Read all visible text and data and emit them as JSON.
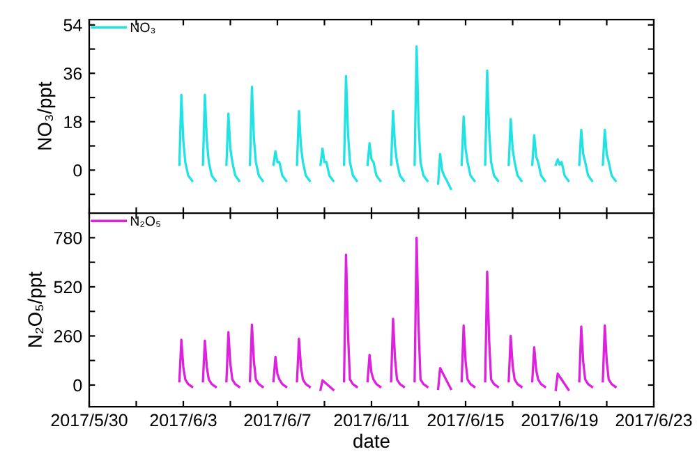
{
  "chart_data": [
    {
      "type": "line",
      "ylabel": "NO₃/ppt",
      "legend": "top left",
      "marker": "none",
      "line_style": "solid",
      "grid": false,
      "tick_labels": "y",
      "xlim": [
        "2017-05-30",
        "2017-06-23"
      ],
      "xticks": [
        {
          "value": "2017-05-30",
          "label": null
        },
        {
          "value": "2017-06-01",
          "label": null
        },
        {
          "value": "2017-06-03",
          "label": null
        },
        {
          "value": "2017-06-05",
          "label": null
        },
        {
          "value": "2017-06-07",
          "label": null
        },
        {
          "value": "2017-06-09",
          "label": null
        },
        {
          "value": "2017-06-11",
          "label": null
        },
        {
          "value": "2017-06-13",
          "label": null
        },
        {
          "value": "2017-06-15",
          "label": null
        },
        {
          "value": "2017-06-17",
          "label": null
        },
        {
          "value": "2017-06-19",
          "label": null
        },
        {
          "value": "2017-06-21",
          "label": null
        },
        {
          "value": "2017-06-23",
          "label": null
        }
      ],
      "ylim": [
        -16,
        56
      ],
      "yticks": [
        {
          "value": -9,
          "label": null
        },
        0,
        {
          "value": 9,
          "label": null
        },
        18,
        {
          "value": 27,
          "label": null
        },
        36,
        {
          "value": 45,
          "label": null
        },
        54
      ],
      "x": [
        "2017-06-02T20:00",
        "2017-06-02T22:00",
        "2017-06-03T00:00",
        "2017-06-03T02:00",
        "2017-06-03T05:00",
        "2017-06-03T09:00",
        "2017-06-03T14:00",
        "2017-06-03T20:00",
        "2017-06-03T22:00",
        "2017-06-04T00:00",
        "2017-06-04T02:00",
        "2017-06-04T05:00",
        "2017-06-04T09:00",
        "2017-06-04T14:00",
        "2017-06-04T20:00",
        "2017-06-04T22:00",
        "2017-06-05T00:00",
        "2017-06-05T02:00",
        "2017-06-05T05:00",
        "2017-06-05T09:00",
        "2017-06-05T14:00",
        "2017-06-05T20:00",
        "2017-06-05T22:00",
        "2017-06-06T00:00",
        "2017-06-06T02:00",
        "2017-06-06T05:00",
        "2017-06-06T09:00",
        "2017-06-06T14:00",
        "2017-06-06T20:00",
        "2017-06-06T22:00",
        "2017-06-07T00:00",
        "2017-06-07T02:00",
        "2017-06-07T05:00",
        "2017-06-07T09:00",
        "2017-06-07T14:00",
        "2017-06-07T20:00",
        "2017-06-07T22:00",
        "2017-06-08T00:00",
        "2017-06-08T02:00",
        "2017-06-08T05:00",
        "2017-06-08T09:00",
        "2017-06-08T14:00",
        "2017-06-08T20:00",
        "2017-06-08T22:00",
        "2017-06-09T00:00",
        "2017-06-09T02:00",
        "2017-06-09T05:00",
        "2017-06-09T09:00",
        "2017-06-09T14:00",
        "2017-06-09T20:00",
        "2017-06-09T22:00",
        "2017-06-10T00:00",
        "2017-06-10T02:00",
        "2017-06-10T05:00",
        "2017-06-10T09:00",
        "2017-06-10T14:00",
        "2017-06-10T20:00",
        "2017-06-10T22:00",
        "2017-06-11T00:00",
        "2017-06-11T02:00",
        "2017-06-11T05:00",
        "2017-06-11T09:00",
        "2017-06-11T14:00",
        "2017-06-11T20:00",
        "2017-06-11T22:00",
        "2017-06-12T00:00",
        "2017-06-12T02:00",
        "2017-06-12T05:00",
        "2017-06-12T09:00",
        "2017-06-12T14:00",
        "2017-06-12T20:00",
        "2017-06-12T22:00",
        "2017-06-13T00:00",
        "2017-06-13T02:00",
        "2017-06-13T05:00",
        "2017-06-13T09:00",
        "2017-06-13T14:00",
        "2017-06-13T20:00",
        "2017-06-13T22:00",
        "2017-06-14T00:00",
        "2017-06-14T02:00",
        "2017-06-14T05:00",
        "2017-06-14T09:00",
        "2017-06-14T14:00",
        "2017-06-14T20:00",
        "2017-06-14T22:00",
        "2017-06-15T00:00",
        "2017-06-15T02:00",
        "2017-06-15T05:00",
        "2017-06-15T09:00",
        "2017-06-15T14:00",
        "2017-06-15T20:00",
        "2017-06-15T22:00",
        "2017-06-16T00:00",
        "2017-06-16T02:00",
        "2017-06-16T05:00",
        "2017-06-16T09:00",
        "2017-06-16T14:00",
        "2017-06-16T20:00",
        "2017-06-16T22:00",
        "2017-06-17T00:00",
        "2017-06-17T02:00",
        "2017-06-17T05:00",
        "2017-06-17T09:00",
        "2017-06-17T14:00",
        "2017-06-17T20:00",
        "2017-06-17T22:00",
        "2017-06-18T00:00",
        "2017-06-18T02:00",
        "2017-06-18T05:00",
        "2017-06-18T09:00",
        "2017-06-18T14:00",
        "2017-06-18T20:00",
        "2017-06-18T22:00",
        "2017-06-19T00:00",
        "2017-06-19T02:00",
        "2017-06-19T05:00",
        "2017-06-19T09:00",
        "2017-06-19T14:00",
        "2017-06-19T20:00",
        "2017-06-19T22:00",
        "2017-06-20T00:00",
        "2017-06-20T02:00",
        "2017-06-20T05:00",
        "2017-06-20T09:00",
        "2017-06-20T14:00",
        "2017-06-20T20:00",
        "2017-06-20T22:00",
        "2017-06-21T00:00",
        "2017-06-21T02:00",
        "2017-06-21T05:00",
        "2017-06-21T09:00"
      ],
      "series": [
        {
          "name": "NO₃",
          "color": "#22e3e3",
          "values": [
            2,
            28,
            11,
            3,
            -2,
            -4,
            null,
            2,
            28,
            11,
            3,
            -2,
            -4,
            null,
            2,
            21,
            8,
            3,
            -2,
            -4,
            null,
            2,
            31,
            12,
            3,
            -2,
            -4,
            null,
            2,
            7,
            3,
            3,
            -2,
            -4,
            null,
            2,
            22,
            9,
            3,
            -2,
            -4,
            null,
            2,
            8,
            3,
            3,
            -2,
            -4,
            null,
            2,
            35,
            14,
            3,
            -2,
            -4,
            null,
            2,
            10,
            4,
            3,
            -2,
            -4,
            null,
            2,
            22,
            9,
            3,
            -2,
            -4,
            null,
            2,
            46,
            18,
            3,
            -2,
            -4,
            null,
            -5,
            6,
            0,
            -2,
            -4,
            -7,
            null,
            2,
            20,
            8,
            3,
            -2,
            -4,
            null,
            2,
            37,
            15,
            3,
            -2,
            -4,
            null,
            2,
            19,
            8,
            3,
            -2,
            -4,
            null,
            2,
            13,
            5,
            3,
            -2,
            -4,
            null,
            2,
            4,
            2,
            3,
            -2,
            -4,
            null,
            2,
            15,
            6,
            3,
            -2,
            -4,
            null,
            2,
            15,
            6,
            3,
            -2,
            -4
          ]
        }
      ]
    },
    {
      "type": "line",
      "ylabel": "N₂O₅/ppt",
      "xlabel": "date",
      "legend": "top left",
      "marker": "none",
      "line_style": "solid",
      "grid": false,
      "xlim": [
        "2017-05-30",
        "2017-06-23"
      ],
      "xticks": [
        {
          "value": "2017-05-30",
          "label": "2017/5/30"
        },
        {
          "value": "2017-06-01",
          "label": null
        },
        {
          "value": "2017-06-03",
          "label": "2017/6/3"
        },
        {
          "value": "2017-06-05",
          "label": null
        },
        {
          "value": "2017-06-07",
          "label": "2017/6/7"
        },
        {
          "value": "2017-06-09",
          "label": null
        },
        {
          "value": "2017-06-11",
          "label": "2017/6/11"
        },
        {
          "value": "2017-06-13",
          "label": null
        },
        {
          "value": "2017-06-15",
          "label": "2017/6/15"
        },
        {
          "value": "2017-06-17",
          "label": null
        },
        {
          "value": "2017-06-19",
          "label": "2017/6/19"
        },
        {
          "value": "2017-06-21",
          "label": null
        },
        {
          "value": "2017-06-23",
          "label": "2017/6/23"
        }
      ],
      "ylim": [
        -115,
        910
      ],
      "yticks": [
        0,
        {
          "value": 130,
          "label": null
        },
        260,
        {
          "value": 390,
          "label": null
        },
        520,
        {
          "value": 650,
          "label": null
        },
        780
      ],
      "x": [
        "2017-06-02T20:00",
        "2017-06-02T22:00",
        "2017-06-03T00:00",
        "2017-06-03T02:00",
        "2017-06-03T05:00",
        "2017-06-03T09:00",
        "2017-06-03T14:00",
        "2017-06-03T20:00",
        "2017-06-03T22:00",
        "2017-06-04T00:00",
        "2017-06-04T02:00",
        "2017-06-04T05:00",
        "2017-06-04T09:00",
        "2017-06-04T14:00",
        "2017-06-04T20:00",
        "2017-06-04T22:00",
        "2017-06-05T00:00",
        "2017-06-05T02:00",
        "2017-06-05T05:00",
        "2017-06-05T09:00",
        "2017-06-05T14:00",
        "2017-06-05T20:00",
        "2017-06-05T22:00",
        "2017-06-06T00:00",
        "2017-06-06T02:00",
        "2017-06-06T05:00",
        "2017-06-06T09:00",
        "2017-06-06T14:00",
        "2017-06-06T20:00",
        "2017-06-06T22:00",
        "2017-06-07T00:00",
        "2017-06-07T02:00",
        "2017-06-07T05:00",
        "2017-06-07T09:00",
        "2017-06-07T14:00",
        "2017-06-07T20:00",
        "2017-06-07T22:00",
        "2017-06-08T00:00",
        "2017-06-08T02:00",
        "2017-06-08T05:00",
        "2017-06-08T09:00",
        "2017-06-08T14:00",
        "2017-06-08T20:00",
        "2017-06-08T22:00",
        "2017-06-09T09:00",
        "2017-06-09T14:00",
        "2017-06-09T20:00",
        "2017-06-09T22:00",
        "2017-06-10T00:00",
        "2017-06-10T02:00",
        "2017-06-10T05:00",
        "2017-06-10T09:00",
        "2017-06-10T14:00",
        "2017-06-10T20:00",
        "2017-06-10T22:00",
        "2017-06-11T00:00",
        "2017-06-11T02:00",
        "2017-06-11T05:00",
        "2017-06-11T09:00",
        "2017-06-11T14:00",
        "2017-06-11T20:00",
        "2017-06-11T22:00",
        "2017-06-12T00:00",
        "2017-06-12T02:00",
        "2017-06-12T05:00",
        "2017-06-12T09:00",
        "2017-06-12T14:00",
        "2017-06-12T20:00",
        "2017-06-12T22:00",
        "2017-06-13T00:00",
        "2017-06-13T02:00",
        "2017-06-13T05:00",
        "2017-06-13T09:00",
        "2017-06-13T14:00",
        "2017-06-13T20:00",
        "2017-06-13T22:00",
        "2017-06-14T09:00",
        "2017-06-14T14:00",
        "2017-06-14T20:00",
        "2017-06-14T22:00",
        "2017-06-15T00:00",
        "2017-06-15T02:00",
        "2017-06-15T05:00",
        "2017-06-15T09:00",
        "2017-06-15T14:00",
        "2017-06-15T20:00",
        "2017-06-15T22:00",
        "2017-06-16T00:00",
        "2017-06-16T02:00",
        "2017-06-16T05:00",
        "2017-06-16T09:00",
        "2017-06-16T14:00",
        "2017-06-16T20:00",
        "2017-06-16T22:00",
        "2017-06-17T00:00",
        "2017-06-17T02:00",
        "2017-06-17T05:00",
        "2017-06-17T09:00",
        "2017-06-17T14:00",
        "2017-06-17T20:00",
        "2017-06-17T22:00",
        "2017-06-18T00:00",
        "2017-06-18T02:00",
        "2017-06-18T05:00",
        "2017-06-18T09:00",
        "2017-06-18T14:00",
        "2017-06-18T20:00",
        "2017-06-18T22:00",
        "2017-06-19T09:00",
        "2017-06-19T14:00",
        "2017-06-19T20:00",
        "2017-06-19T22:00",
        "2017-06-20T00:00",
        "2017-06-20T02:00",
        "2017-06-20T05:00",
        "2017-06-20T09:00",
        "2017-06-20T14:00",
        "2017-06-20T20:00",
        "2017-06-20T22:00",
        "2017-06-21T00:00",
        "2017-06-21T02:00",
        "2017-06-21T05:00",
        "2017-06-21T09:00"
      ],
      "series": [
        {
          "name": "N₂O₅",
          "color": "#dd22dd",
          "values": [
            20,
            240,
            96,
            30,
            5,
            -10,
            null,
            20,
            235,
            94,
            30,
            5,
            -10,
            null,
            20,
            280,
            112,
            30,
            5,
            -10,
            null,
            20,
            320,
            128,
            30,
            5,
            -10,
            null,
            20,
            150,
            60,
            30,
            5,
            -10,
            null,
            20,
            245,
            98,
            30,
            5,
            -10,
            null,
            -25,
            25,
            -25,
            null,
            20,
            690,
            276,
            30,
            5,
            -10,
            null,
            20,
            160,
            64,
            30,
            5,
            -10,
            null,
            20,
            350,
            140,
            30,
            5,
            -10,
            null,
            20,
            780,
            312,
            30,
            5,
            -10,
            null,
            -20,
            90,
            -20,
            null,
            20,
            315,
            126,
            30,
            5,
            -10,
            null,
            20,
            600,
            240,
            30,
            5,
            -10,
            null,
            20,
            260,
            104,
            30,
            5,
            -10,
            null,
            20,
            200,
            80,
            30,
            5,
            -10,
            null,
            -25,
            60,
            -25,
            null,
            20,
            310,
            124,
            30,
            5,
            -10,
            null,
            20,
            315,
            126,
            30,
            5,
            -10
          ]
        }
      ]
    }
  ]
}
